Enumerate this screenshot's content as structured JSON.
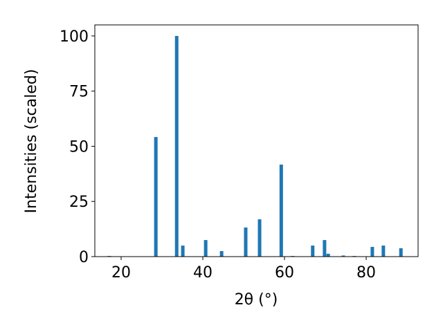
{
  "chart_data": {
    "type": "bar",
    "xlabel": "2θ (°)",
    "ylabel": "Intensities (scaled)",
    "x": [
      17.1,
      28.5,
      33.6,
      35.1,
      40.7,
      44.6,
      50.5,
      53.9,
      59.2,
      62.0,
      66.9,
      69.8,
      70.7,
      74.4,
      77.1,
      81.5,
      84.2,
      88.5
    ],
    "values": [
      0.3,
      54.2,
      100,
      5.0,
      7.5,
      2.5,
      13.2,
      16.9,
      41.7,
      0.3,
      5.0,
      7.5,
      1.3,
      0.5,
      0.3,
      4.4,
      5.0,
      3.8
    ],
    "color": "#1f77b4",
    "xlim": [
      13.56,
      92.7
    ],
    "xticks": [
      20,
      40,
      60,
      80
    ],
    "ylim": [
      0,
      105
    ],
    "yticks": [
      0,
      25,
      50,
      75,
      100
    ],
    "grid": false
  }
}
